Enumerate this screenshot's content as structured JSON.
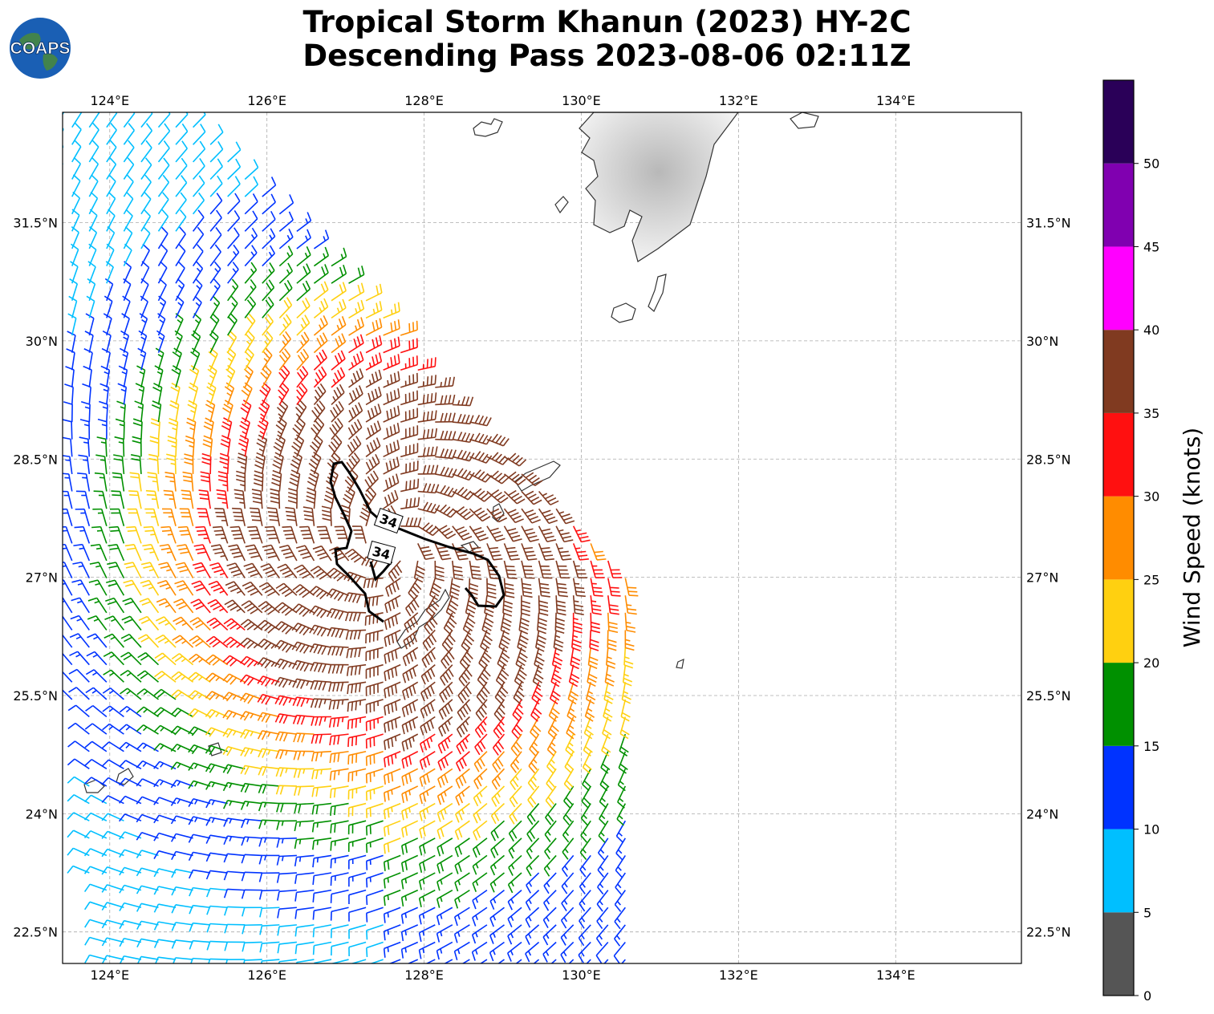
{
  "title": {
    "line1": "Tropical Storm Khanun (2023) HY-2C",
    "line2": "Descending Pass 2023-08-06 02:11Z"
  },
  "logo": {
    "text": "COAPS",
    "icon": "globe-icon"
  },
  "map": {
    "lon_range": [
      123.4,
      135.6
    ],
    "lat_range": [
      22.1,
      32.9
    ],
    "lon_ticks": [
      {
        "value": 124,
        "label": "124°E"
      },
      {
        "value": 126,
        "label": "126°E"
      },
      {
        "value": 128,
        "label": "128°E"
      },
      {
        "value": 130,
        "label": "130°E"
      },
      {
        "value": 132,
        "label": "132°E"
      },
      {
        "value": 134,
        "label": "134°E"
      }
    ],
    "lat_ticks": [
      {
        "value": 31.5,
        "label": "31.5°N"
      },
      {
        "value": 30,
        "label": "30°N"
      },
      {
        "value": 28.5,
        "label": "28.5°N"
      },
      {
        "value": 27,
        "label": "27°N"
      },
      {
        "value": 25.5,
        "label": "25.5°N"
      },
      {
        "value": 24,
        "label": "24°N"
      },
      {
        "value": 22.5,
        "label": "22.5°N"
      }
    ],
    "grid": true,
    "contour": {
      "level": "34",
      "color": "#000000"
    },
    "wind_barbs": "storm circulation barbs colored by speed (knots)"
  },
  "colorbar": {
    "title": "Wind Speed (knots)",
    "ticks": [
      "0",
      "5",
      "10",
      "15",
      "20",
      "25",
      "30",
      "35",
      "40",
      "45",
      "50"
    ],
    "colors": [
      "#555555",
      "#00bfff",
      "#0033ff",
      "#009000",
      "#ffd010",
      "#ff8c00",
      "#ff1010",
      "#803a20",
      "#ff00ff",
      "#8000b0",
      "#2a0058"
    ],
    "bounds": [
      0,
      5,
      10,
      15,
      20,
      25,
      30,
      35,
      40,
      45,
      50,
      55
    ]
  }
}
